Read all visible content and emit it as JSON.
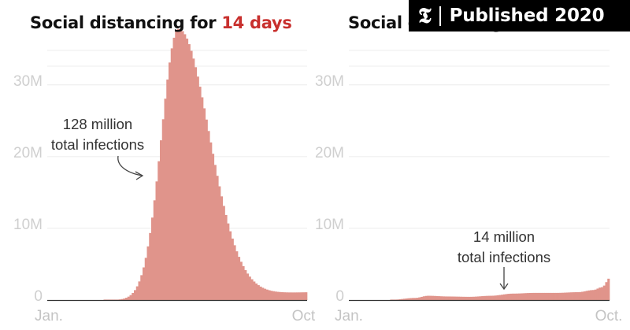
{
  "badge": {
    "logo": "𝕿",
    "text": "Published 2020"
  },
  "chart_data": [
    {
      "type": "bar",
      "title_prefix": "Social distancing for ",
      "title_highlight": "14 days",
      "ylim": [
        0,
        37000000
      ],
      "yticks": [
        0,
        10000000,
        20000000,
        30000000
      ],
      "ytick_labels": [
        "0",
        "10M",
        "20M",
        "30M"
      ],
      "xtick_labels": [
        "Jan.",
        "Oct."
      ],
      "grid": true,
      "annotation": [
        "128 million",
        "total infections"
      ],
      "color": "#e0948b",
      "bins": 120,
      "peak_bin": 60,
      "peak_value": 37800000,
      "onset_bin": 26,
      "rise_width": 11,
      "tail_width": 20,
      "tail_floor": 1400000,
      "tail_floor_scale": 40
    },
    {
      "type": "bar",
      "title_prefix": "Social distancing",
      "title_highlight": "",
      "ylim": [
        0,
        37000000
      ],
      "yticks": [
        0,
        10000000,
        20000000,
        30000000
      ],
      "ytick_labels": [
        "0",
        "10M",
        "20M",
        "30M"
      ],
      "xtick_labels": [
        "Jan.",
        "Oct."
      ],
      "grid": true,
      "annotation": [
        "14 million",
        "total infections"
      ],
      "color": "#e0948b",
      "bins": 120,
      "points": [
        [
          0,
          0
        ],
        [
          18,
          0
        ],
        [
          30,
          300000
        ],
        [
          36,
          600000
        ],
        [
          45,
          500000
        ],
        [
          55,
          450000
        ],
        [
          65,
          600000
        ],
        [
          75,
          900000
        ],
        [
          85,
          1000000
        ],
        [
          95,
          1000000
        ],
        [
          105,
          1100000
        ],
        [
          112,
          1400000
        ],
        [
          116,
          1800000
        ],
        [
          120,
          3200000
        ]
      ]
    }
  ]
}
